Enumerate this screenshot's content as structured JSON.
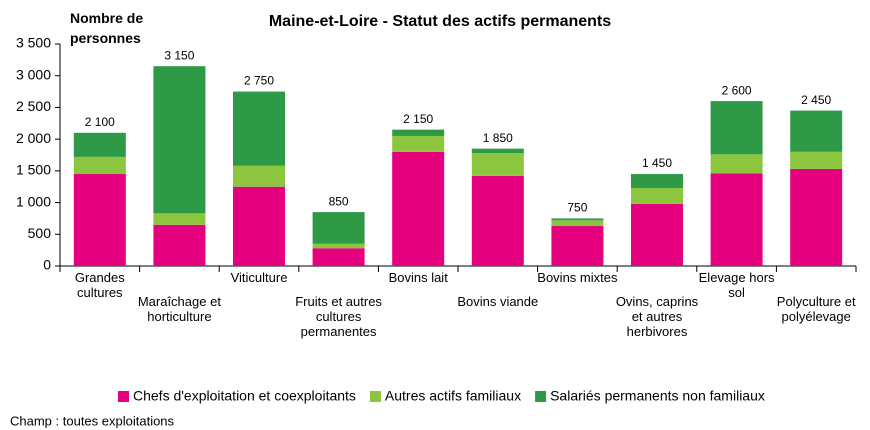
{
  "chart_data": {
    "type": "stacked-bar",
    "title": "Maine-et-Loire - Statut des actifs permanents",
    "y_label": "Nombre de personnes",
    "footnote": "Champ : toutes exploitations",
    "categories": [
      "Grandes cultures",
      "Maraîchage et horticulture",
      "Viticulture",
      "Fruits et autres cultures permanentes",
      "Bovins lait",
      "Bovins viande",
      "Bovins mixtes",
      "Ovins, caprins et autres herbivores",
      "Elevage hors sol",
      "Polyculture et polyélevage"
    ],
    "series": [
      {
        "name": "Chefs d'exploitation et coexploitants",
        "color": "#e5007d",
        "values": [
          1450,
          650,
          1250,
          280,
          1800,
          1420,
          630,
          980,
          1460,
          1530
        ]
      },
      {
        "name": "Autres actifs familiaux",
        "color": "#8cc63f",
        "values": [
          270,
          180,
          330,
          70,
          250,
          360,
          90,
          250,
          300,
          270
        ]
      },
      {
        "name": "Salariés permanents non familiaux",
        "color": "#2e9a48",
        "values": [
          380,
          2320,
          1170,
          500,
          100,
          70,
          30,
          220,
          840,
          650
        ]
      }
    ],
    "totals": [
      2100,
      3150,
      2750,
      850,
      2150,
      1850,
      750,
      1450,
      2600,
      2450
    ],
    "total_labels": [
      "2 100",
      "3 150",
      "2 750",
      "850",
      "2 150",
      "1 850",
      "750",
      "1 450",
      "2 600",
      "2 450"
    ],
    "ylim": [
      0,
      3500
    ],
    "yticks": [
      0,
      500,
      {
        "value": 1000,
        "label": "1 000"
      },
      {
        "value": 1500,
        "label": "1 500"
      },
      {
        "value": 2000,
        "label": "2 000"
      },
      {
        "value": 2500,
        "label": "2 500"
      },
      {
        "value": 3000,
        "label": "3 000"
      },
      {
        "value": 3500,
        "label": "3 500"
      }
    ],
    "legend": "bottom"
  }
}
